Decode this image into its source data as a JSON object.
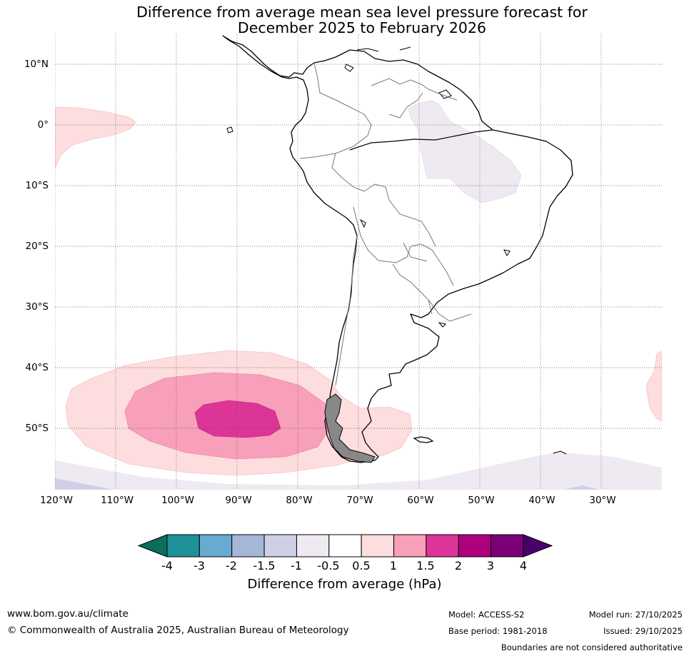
{
  "title": {
    "line1": "Difference from average mean sea level pressure forecast for",
    "line2": "December 2025 to February 2026"
  },
  "map": {
    "lat_labels": [
      "10°N",
      "0°",
      "10°S",
      "20°S",
      "30°S",
      "40°S",
      "50°S"
    ],
    "lon_labels": [
      "120°W",
      "110°W",
      "100°W",
      "90°W",
      "80°W",
      "70°W",
      "60°W",
      "50°W",
      "40°W",
      "30°W"
    ],
    "lat_range_deg": [
      -60,
      15
    ],
    "lon_range_deg": [
      -120,
      -20
    ]
  },
  "colorbar": {
    "title": "Difference from average (hPa)",
    "tick_labels": [
      "-4",
      "-3",
      "-2",
      "-1.5",
      "-1",
      "-0.5",
      "0.5",
      "1",
      "1.5",
      "2",
      "3",
      "4"
    ],
    "colors": [
      "#0b6e5c",
      "#1f9199",
      "#69aad2",
      "#a4b7d7",
      "#cfd0e6",
      "#efeaf1",
      "#ffffff",
      "#fdddde",
      "#f8a0b9",
      "#dd3497",
      "#ad017e",
      "#7a0177",
      "#49006a"
    ]
  },
  "footer": {
    "url": "www.bom.gov.au/climate",
    "copyright": "© Commonwealth of Australia 2025, Australian Bureau of Meteorology",
    "model": "Model: ACCESS-S2",
    "base_period": "Base period: 1981-2018",
    "model_run": "Model run: 27/10/2025",
    "issued": "Issued: 29/10/2025",
    "disclaimer": "Boundaries are not considered authoritative"
  }
}
